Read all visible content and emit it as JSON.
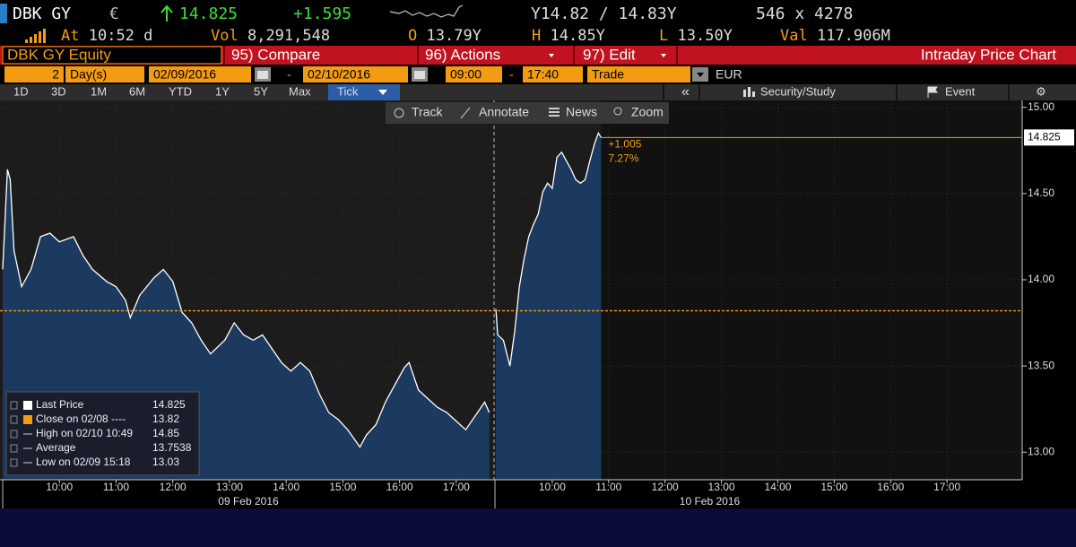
{
  "header": {
    "ticker": "DBK GY",
    "currency": "€",
    "last": "14.825",
    "change": "+1.595",
    "bid_ask": "Y14.82 / 14.83Y",
    "size": "546 x 4278"
  },
  "quote": [
    {
      "label": "At",
      "value": "10:52 d"
    },
    {
      "label": "Vol",
      "value": "8,291,548"
    },
    {
      "label": "O",
      "value": "13.79Y"
    },
    {
      "label": "H",
      "value": "14.85Y"
    },
    {
      "label": "L",
      "value": "13.50Y"
    },
    {
      "label": "Val",
      "value": "117.906M"
    }
  ],
  "menu": {
    "security": "DBK GY Equity",
    "items": [
      "95) Compare",
      "96) Actions",
      "97) Edit"
    ],
    "title": "Intraday Price Chart"
  },
  "settings": {
    "days": "2",
    "unit": "Day(s)",
    "start_date": "02/09/2016",
    "end_date": "02/10/2016",
    "separator": "-",
    "start_time": "09:00",
    "end_time": "17:40",
    "field": "Trade",
    "currency": "EUR"
  },
  "periods": [
    "1D",
    "3D",
    "1M",
    "6M",
    "YTD",
    "1Y",
    "5Y",
    "Max",
    "Tick"
  ],
  "tools": {
    "collapse": "«",
    "study": "Security/Study",
    "event": "Event",
    "settings": "⚙"
  },
  "chart_tools": [
    "Track",
    "Annotate",
    "News",
    "Zoom"
  ],
  "chart_data": {
    "type": "area",
    "color": "#ffffff",
    "fill": "#1c3a60",
    "grid": true,
    "ylim": [
      12.84,
      15.04
    ],
    "yticks": [
      {
        "value": 13,
        "label": "13.00"
      },
      {
        "value": 13.5,
        "label": "13.50"
      },
      {
        "value": 14,
        "label": "14.00"
      },
      {
        "value": 14.5,
        "label": "14.50"
      },
      {
        "value": 15,
        "label": "15.00"
      }
    ],
    "reference": {
      "value": 13.82,
      "color": "#f39c12"
    },
    "last": {
      "value": 14.825,
      "change_label": "+1.005",
      "pct_label": "7.27%"
    },
    "panels": [
      {
        "xlabel": "09 Feb 2016",
        "xlim": [
          "09:00",
          "17:40"
        ],
        "xticks": [
          "10:00",
          "11:00",
          "12:00",
          "13:00",
          "14:00",
          "15:00",
          "16:00",
          "17:00"
        ],
        "x": [
          "09:00",
          "09:05",
          "09:08",
          "09:12",
          "09:20",
          "09:30",
          "09:40",
          "09:50",
          "10:00",
          "10:15",
          "10:25",
          "10:35",
          "10:50",
          "11:00",
          "11:10",
          "11:15",
          "11:25",
          "11:40",
          "11:50",
          "12:00",
          "12:10",
          "12:20",
          "12:30",
          "12:40",
          "12:55",
          "13:05",
          "13:15",
          "13:25",
          "13:35",
          "13:45",
          "13:55",
          "14:05",
          "14:15",
          "14:25",
          "14:35",
          "14:45",
          "14:55",
          "15:05",
          "15:18",
          "15:25",
          "15:35",
          "15:45",
          "15:55",
          "16:05",
          "16:10",
          "16:20",
          "16:30",
          "16:40",
          "16:50",
          "17:00",
          "17:10",
          "17:20",
          "17:30",
          "17:35"
        ],
        "values": [
          14.06,
          14.64,
          14.58,
          14.17,
          13.96,
          14.06,
          14.25,
          14.27,
          14.22,
          14.25,
          14.14,
          14.06,
          13.99,
          13.96,
          13.88,
          13.78,
          13.91,
          14.01,
          14.06,
          13.99,
          13.81,
          13.75,
          13.65,
          13.57,
          13.65,
          13.75,
          13.68,
          13.65,
          13.68,
          13.6,
          13.52,
          13.47,
          13.52,
          13.47,
          13.34,
          13.23,
          13.19,
          13.13,
          13.03,
          13.1,
          13.16,
          13.29,
          13.39,
          13.49,
          13.52,
          13.36,
          13.31,
          13.26,
          13.23,
          13.18,
          13.13,
          13.21,
          13.29,
          13.23
        ]
      },
      {
        "xlabel": "10 Feb 2016",
        "xlim": [
          "09:00",
          "18:20"
        ],
        "xticks": [
          "10:00",
          "11:00",
          "12:00",
          "13:00",
          "14:00",
          "15:00",
          "16:00",
          "17:00"
        ],
        "x": [
          "09:00",
          "09:02",
          "09:08",
          "09:15",
          "09:20",
          "09:25",
          "09:30",
          "09:35",
          "09:40",
          "09:45",
          "09:50",
          "09:55",
          "10:00",
          "10:05",
          "10:10",
          "10:15",
          "10:20",
          "10:25",
          "10:30",
          "10:35",
          "10:40",
          "10:45",
          "10:49",
          "10:52"
        ],
        "values": [
          13.83,
          13.68,
          13.65,
          13.5,
          13.7,
          13.96,
          14.12,
          14.25,
          14.32,
          14.38,
          14.51,
          14.56,
          14.53,
          14.71,
          14.74,
          14.69,
          14.64,
          14.58,
          14.56,
          14.58,
          14.69,
          14.79,
          14.85,
          14.825
        ]
      }
    ],
    "legend": [
      {
        "name": "Last Price",
        "value": 14.825
      },
      {
        "name": "Close on 02/08 ----",
        "value": 13.82
      },
      {
        "name": "High on 02/10 10:49",
        "value": 14.85
      },
      {
        "name": "Average",
        "value": 13.7538
      },
      {
        "name": "Low on 02/09 15:18",
        "value": 13.03
      }
    ]
  }
}
